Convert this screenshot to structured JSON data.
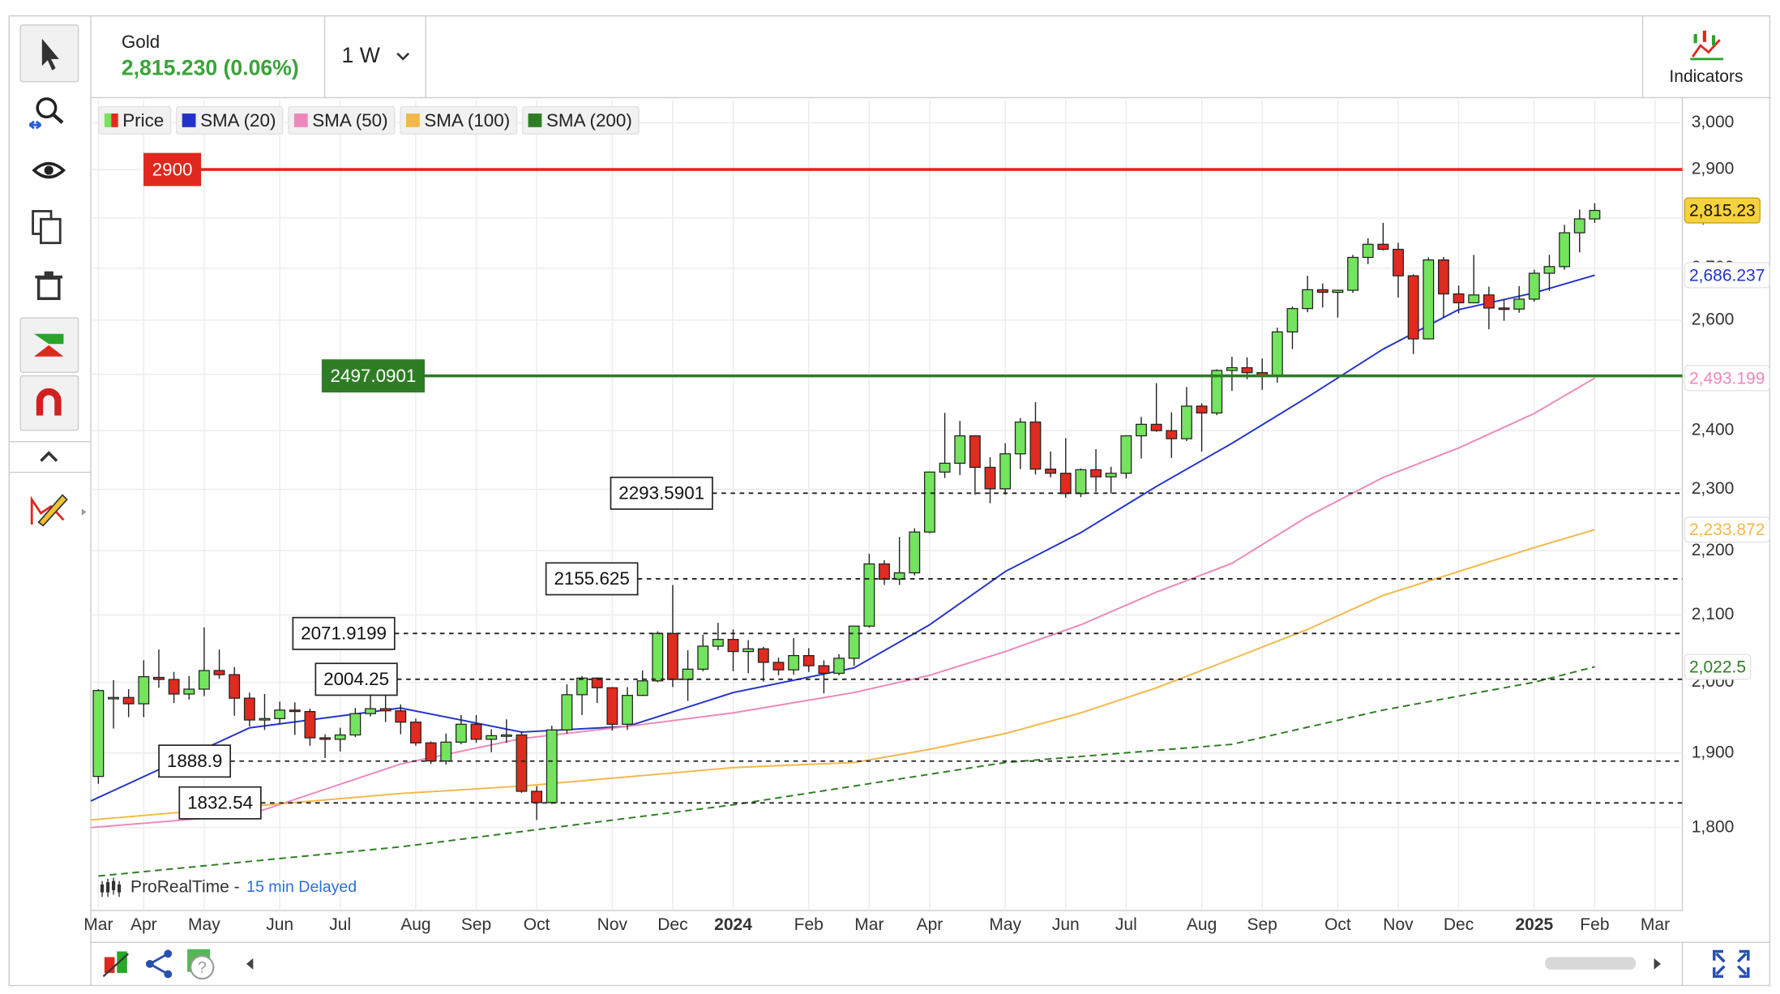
{
  "header": {
    "instrument": "Gold",
    "price": "2,815.230 (0.06%)",
    "timeframe": "1 W",
    "indicators_button": "Indicators"
  },
  "footer": {
    "source": "ProRealTime -",
    "delay": "15 min Delayed"
  },
  "chart_data": {
    "type": "candlestick",
    "log_scale": true,
    "grid": true,
    "candles": {
      "name": "Price",
      "up_color": "#74e35e",
      "down_color": "#e02b20",
      "last_label": "2,815.23",
      "ohlc": [
        [
          1868,
          1990,
          1858,
          1988
        ],
        [
          1978,
          2003,
          1934,
          1978
        ],
        [
          1978,
          1990,
          1950,
          1969
        ],
        [
          1969,
          2032,
          1950,
          2008
        ],
        [
          2007,
          2048,
          1992,
          2004
        ],
        [
          2004,
          2015,
          1970,
          1983
        ],
        [
          1983,
          2009,
          1975,
          1990
        ],
        [
          1990,
          2081,
          1980,
          2017
        ],
        [
          2017,
          2048,
          2005,
          2011
        ],
        [
          2011,
          2022,
          1952,
          1977
        ],
        [
          1977,
          1985,
          1937,
          1946
        ],
        [
          1946,
          1983,
          1932,
          1948
        ],
        [
          1948,
          1972,
          1940,
          1960
        ],
        [
          1960,
          1971,
          1925,
          1958
        ],
        [
          1958,
          1962,
          1910,
          1921
        ],
        [
          1921,
          1926,
          1893,
          1919
        ],
        [
          1919,
          1935,
          1902,
          1925
        ],
        [
          1925,
          1963,
          1922,
          1955
        ],
        [
          1955,
          1987,
          1951,
          1962
        ],
        [
          1962,
          1982,
          1943,
          1959
        ],
        [
          1959,
          1968,
          1926,
          1943
        ],
        [
          1943,
          1948,
          1910,
          1914
        ],
        [
          1914,
          1916,
          1885,
          1889
        ],
        [
          1889,
          1927,
          1884,
          1915
        ],
        [
          1915,
          1953,
          1912,
          1940
        ],
        [
          1940,
          1953,
          1914,
          1919
        ],
        [
          1919,
          1933,
          1901,
          1924
        ],
        [
          1924,
          1947,
          1914,
          1925
        ],
        [
          1925,
          1930,
          1846,
          1848
        ],
        [
          1848,
          1855,
          1810,
          1833
        ],
        [
          1833,
          1938,
          1831,
          1932
        ],
        [
          1932,
          1997,
          1927,
          1982
        ],
        [
          1982,
          2009,
          1953,
          2006
        ],
        [
          2006,
          2007,
          1970,
          1992
        ],
        [
          1992,
          1993,
          1931,
          1940
        ],
        [
          1940,
          1993,
          1932,
          1981
        ],
        [
          1981,
          2017,
          1980,
          2002
        ],
        [
          2002,
          2075,
          2000,
          2072
        ],
        [
          2072,
          2146,
          1993,
          2004
        ],
        [
          2004,
          2047,
          1973,
          2019
        ],
        [
          2019,
          2070,
          2016,
          2053
        ],
        [
          2053,
          2088,
          2047,
          2063
        ],
        [
          2063,
          2078,
          2016,
          2045
        ],
        [
          2045,
          2062,
          2013,
          2049
        ],
        [
          2049,
          2052,
          2001,
          2029
        ],
        [
          2029,
          2036,
          2010,
          2018
        ],
        [
          2018,
          2065,
          2011,
          2039
        ],
        [
          2039,
          2050,
          2015,
          2024
        ],
        [
          2024,
          2032,
          1984,
          2013
        ],
        [
          2013,
          2041,
          2010,
          2035
        ],
        [
          2035,
          2083,
          2024,
          2083
        ],
        [
          2083,
          2195,
          2081,
          2179
        ],
        [
          2179,
          2185,
          2146,
          2155
        ],
        [
          2155,
          2222,
          2146,
          2165
        ],
        [
          2165,
          2236,
          2161,
          2230
        ],
        [
          2230,
          2330,
          2228,
          2329
        ],
        [
          2329,
          2431,
          2319,
          2344
        ],
        [
          2344,
          2417,
          2324,
          2391
        ],
        [
          2391,
          2392,
          2291,
          2337
        ],
        [
          2337,
          2354,
          2277,
          2301
        ],
        [
          2301,
          2378,
          2291,
          2360
        ],
        [
          2360,
          2422,
          2334,
          2415
        ],
        [
          2415,
          2450,
          2325,
          2334
        ],
        [
          2334,
          2364,
          2320,
          2327
        ],
        [
          2327,
          2387,
          2286,
          2293
        ],
        [
          2293,
          2335,
          2287,
          2333
        ],
        [
          2333,
          2368,
          2296,
          2321
        ],
        [
          2321,
          2338,
          2293,
          2327
        ],
        [
          2327,
          2392,
          2318,
          2391
        ],
        [
          2391,
          2424,
          2352,
          2411
        ],
        [
          2411,
          2484,
          2398,
          2400
        ],
        [
          2400,
          2432,
          2353,
          2386
        ],
        [
          2386,
          2477,
          2382,
          2443
        ],
        [
          2443,
          2448,
          2364,
          2431
        ],
        [
          2431,
          2509,
          2427,
          2507
        ],
        [
          2507,
          2532,
          2470,
          2512
        ],
        [
          2512,
          2531,
          2491,
          2503
        ],
        [
          2503,
          2529,
          2472,
          2497
        ],
        [
          2497,
          2586,
          2485,
          2578
        ],
        [
          2578,
          2626,
          2546,
          2622
        ],
        [
          2622,
          2685,
          2615,
          2658
        ],
        [
          2658,
          2670,
          2624,
          2653
        ],
        [
          2653,
          2658,
          2605,
          2657
        ],
        [
          2657,
          2726,
          2652,
          2721
        ],
        [
          2721,
          2759,
          2708,
          2747
        ],
        [
          2747,
          2790,
          2735,
          2737
        ],
        [
          2737,
          2750,
          2643,
          2685
        ],
        [
          2685,
          2688,
          2537,
          2565
        ],
        [
          2565,
          2721,
          2564,
          2716
        ],
        [
          2716,
          2722,
          2605,
          2650
        ],
        [
          2650,
          2666,
          2613,
          2633
        ],
        [
          2633,
          2726,
          2632,
          2648
        ],
        [
          2648,
          2664,
          2583,
          2623
        ],
        [
          2623,
          2639,
          2599,
          2621
        ],
        [
          2621,
          2665,
          2614,
          2640
        ],
        [
          2640,
          2697,
          2635,
          2690
        ],
        [
          2690,
          2726,
          2656,
          2703
        ],
        [
          2703,
          2786,
          2697,
          2770
        ],
        [
          2770,
          2817,
          2731,
          2798
        ],
        [
          2798,
          2830,
          2790,
          2815.23
        ]
      ]
    },
    "series": [
      {
        "name": "SMA (20)",
        "color": "#2233cc",
        "dash": false,
        "last_label": "2,686.237",
        "x": [
          -0.5,
          10,
          20,
          28,
          35,
          42,
          50,
          55,
          60,
          65,
          70,
          75,
          80,
          85,
          90,
          95,
          99
        ],
        "values": [
          1835,
          1935,
          1963,
          1929,
          1937,
          1985,
          2021,
          2085,
          2167,
          2229,
          2305,
          2378,
          2459,
          2546,
          2620,
          2652,
          2686.237
        ]
      },
      {
        "name": "SMA (50)",
        "color": "#ee88bb",
        "dash": false,
        "last_label": "2,493.199",
        "x": [
          -0.5,
          10,
          20,
          28,
          35,
          42,
          50,
          55,
          60,
          65,
          70,
          75,
          80,
          85,
          90,
          95,
          99
        ],
        "values": [
          1800,
          1817,
          1885,
          1920,
          1937,
          1956,
          1985,
          2010,
          2045,
          2085,
          2135,
          2180,
          2255,
          2320,
          2370,
          2430,
          2493.199
        ]
      },
      {
        "name": "SMA (100)",
        "color": "#f2b84b",
        "dash": false,
        "last_label": "2,233.872",
        "x": [
          -0.5,
          20,
          28,
          42,
          50,
          55,
          60,
          65,
          70,
          75,
          80,
          85,
          90,
          95,
          99
        ],
        "values": [
          1810,
          1845,
          1855,
          1880,
          1887,
          1905,
          1927,
          1956,
          1992,
          2034,
          2078,
          2130,
          2167,
          2205,
          2233.872
        ]
      },
      {
        "name": "SMA (200)",
        "color": "#2e7d24",
        "dash": true,
        "last_label": "2,022.5",
        "x": [
          0,
          20,
          42,
          60,
          75,
          85,
          95,
          99
        ],
        "values": [
          1738,
          1775,
          1830,
          1887,
          1912,
          1960,
          2000,
          2022.5
        ]
      }
    ],
    "levels": [
      {
        "value": 2900,
        "color": "#e0281e",
        "style": "solid"
      },
      {
        "value": 2497.0901,
        "color": "#2e7d24",
        "style": "solid"
      },
      {
        "value": 2293.5901,
        "color": "#222",
        "style": "dashed"
      },
      {
        "value": 2155.625,
        "color": "#222",
        "style": "dashed"
      },
      {
        "value": 2071.9199,
        "color": "#222",
        "style": "dashed"
      },
      {
        "value": 2004.25,
        "color": "#222",
        "style": "dashed"
      },
      {
        "value": 1888.9,
        "color": "#222",
        "style": "dashed"
      },
      {
        "value": 1832.54,
        "color": "#222",
        "style": "dashed"
      }
    ],
    "xlim": [
      -0.5,
      104.8
    ],
    "xticks": [
      {
        "value": 0,
        "label": "Mar"
      },
      {
        "value": 3,
        "label": "Apr"
      },
      {
        "value": 7,
        "label": "May"
      },
      {
        "value": 12,
        "label": "Jun"
      },
      {
        "value": 16,
        "label": "Jul"
      },
      {
        "value": 21,
        "label": "Aug"
      },
      {
        "value": 25,
        "label": "Sep"
      },
      {
        "value": 29,
        "label": "Oct"
      },
      {
        "value": 34,
        "label": "Nov"
      },
      {
        "value": 38,
        "label": "Dec"
      },
      {
        "value": 42,
        "label": "2024"
      },
      {
        "value": 47,
        "label": "Feb"
      },
      {
        "value": 51,
        "label": "Mar"
      },
      {
        "value": 55,
        "label": "Apr"
      },
      {
        "value": 60,
        "label": "May"
      },
      {
        "value": 64,
        "label": "Jun"
      },
      {
        "value": 68,
        "label": "Jul"
      },
      {
        "value": 73,
        "label": "Aug"
      },
      {
        "value": 77,
        "label": "Sep"
      },
      {
        "value": 82,
        "label": "Oct"
      },
      {
        "value": 86,
        "label": "Nov"
      },
      {
        "value": 90,
        "label": "Dec"
      },
      {
        "value": 95,
        "label": "2025"
      },
      {
        "value": 99,
        "label": "Feb"
      },
      {
        "value": 103,
        "label": "Mar"
      }
    ],
    "ylim": [
      1695,
      3050
    ],
    "yticks": [
      {
        "value": 1800,
        "label": "1,800"
      },
      {
        "value": 1900,
        "label": "1,900"
      },
      {
        "value": 2000,
        "label": "2,000"
      },
      {
        "value": 2100,
        "label": "2,100"
      },
      {
        "value": 2200,
        "label": "2,200"
      },
      {
        "value": 2300,
        "label": "2,300"
      },
      {
        "value": 2400,
        "label": "2,400"
      },
      {
        "value": 2500,
        "label": "2,500"
      },
      {
        "value": 2600,
        "label": "2,600"
      },
      {
        "value": 2700,
        "label": "2,700"
      },
      {
        "value": 2800,
        "label": "2,800"
      },
      {
        "value": 2900,
        "label": "2,900"
      },
      {
        "value": 3000,
        "label": "3,000"
      }
    ]
  }
}
